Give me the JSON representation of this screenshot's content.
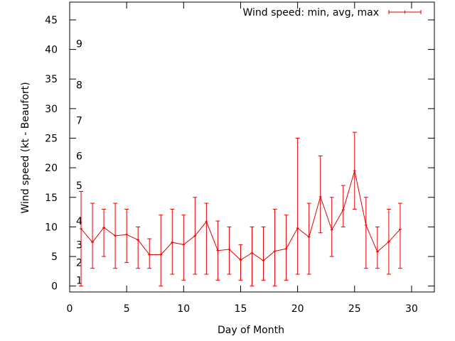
{
  "chart_data": {
    "type": "line",
    "title": "",
    "xlabel": "Day of Month",
    "ylabel": "Wind speed (kt - Beaufort)",
    "xlim": [
      0,
      32
    ],
    "ylim": [
      -1,
      48
    ],
    "x_ticks": [
      0,
      5,
      10,
      15,
      20,
      25,
      30
    ],
    "y_ticks": [
      0,
      5,
      10,
      15,
      20,
      25,
      30,
      35,
      40,
      45
    ],
    "beaufort_labels": [
      {
        "label": "1",
        "value": 1
      },
      {
        "label": "2",
        "value": 4
      },
      {
        "label": "3",
        "value": 7
      },
      {
        "label": "4",
        "value": 11
      },
      {
        "label": "5",
        "value": 17
      },
      {
        "label": "6",
        "value": 22
      },
      {
        "label": "7",
        "value": 28
      },
      {
        "label": "8",
        "value": 34
      },
      {
        "label": "9",
        "value": 41
      }
    ],
    "grid": false,
    "legend": {
      "position": "top-right"
    },
    "series": [
      {
        "name": "Wind speed: min, avg, max",
        "color": "#e00000",
        "x": [
          1,
          2,
          3,
          4,
          5,
          6,
          7,
          8,
          9,
          10,
          11,
          12,
          13,
          14,
          15,
          16,
          17,
          18,
          19,
          20,
          21,
          22,
          23,
          24,
          25,
          26,
          27,
          28,
          29
        ],
        "avg": [
          9.7,
          7.4,
          9.9,
          8.5,
          8.7,
          7.8,
          5.3,
          5.3,
          7.4,
          7.0,
          8.5,
          10.9,
          6.0,
          6.2,
          4.4,
          5.6,
          4.3,
          5.9,
          6.3,
          9.8,
          8.3,
          15.1,
          9.5,
          12.9,
          19.5,
          10.3,
          5.8,
          7.5,
          9.6
        ],
        "min": [
          0,
          3,
          5,
          3,
          4,
          3,
          3,
          0,
          2,
          1,
          2,
          2,
          1,
          2,
          1,
          0,
          1,
          0,
          1,
          2,
          2,
          9,
          5,
          10,
          13,
          3,
          3,
          2,
          3
        ],
        "max": [
          16,
          14,
          13,
          14,
          13,
          10,
          8,
          12,
          13,
          12,
          15,
          14,
          11,
          10,
          7,
          10,
          10,
          13,
          12,
          25,
          14,
          22,
          15,
          17,
          26,
          15,
          10,
          13,
          14
        ]
      }
    ]
  }
}
